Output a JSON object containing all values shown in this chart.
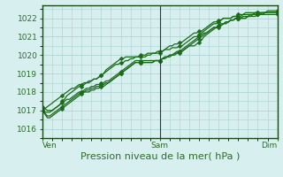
{
  "title": "",
  "xlabel": "Pression niveau de la mer( hPa )",
  "ylabel": "",
  "bg_color": "#d8eff0",
  "grid_color": "#aacfcf",
  "line_color": "#1a6b1a",
  "border_color": "#2d6b2d",
  "axis_color": "#1a4a1a",
  "ylim": [
    1015.5,
    1022.7
  ],
  "yticks": [
    1016,
    1017,
    1018,
    1019,
    1020,
    1021,
    1022
  ],
  "xtick_labels": [
    "Ven",
    "Sam",
    "Dim"
  ],
  "xtick_positions": [
    0,
    48,
    96
  ],
  "total_points": 97,
  "lines": [
    [
      1017.0,
      1017.1,
      1017.2,
      1017.3,
      1017.4,
      1017.5,
      1017.6,
      1017.7,
      1017.8,
      1017.9,
      1018.0,
      1018.1,
      1018.2,
      1018.2,
      1018.3,
      1018.4,
      1018.4,
      1018.5,
      1018.5,
      1018.6,
      1018.6,
      1018.7,
      1018.7,
      1018.8,
      1018.9,
      1019.0,
      1019.1,
      1019.2,
      1019.3,
      1019.4,
      1019.5,
      1019.5,
      1019.6,
      1019.6,
      1019.7,
      1019.7,
      1019.8,
      1019.8,
      1019.9,
      1019.9,
      1020.0,
      1020.0,
      1020.0,
      1020.1,
      1020.1,
      1020.1,
      1020.1,
      1020.1,
      1020.1,
      1020.2,
      1020.3,
      1020.4,
      1020.5,
      1020.5,
      1020.6,
      1020.6,
      1020.7,
      1020.7,
      1020.8,
      1020.9,
      1021.0,
      1021.1,
      1021.2,
      1021.2,
      1021.3,
      1021.3,
      1021.4,
      1021.5,
      1021.6,
      1021.7,
      1021.8,
      1021.8,
      1021.9,
      1021.9,
      1022.0,
      1022.0,
      1022.0,
      1022.0,
      1022.1,
      1022.1,
      1022.1,
      1022.1,
      1022.2,
      1022.2,
      1022.2,
      1022.2,
      1022.2,
      1022.3,
      1022.3,
      1022.3,
      1022.3,
      1022.3,
      1022.3,
      1022.3,
      1022.3,
      1022.3,
      1022.3
    ],
    [
      1017.0,
      1016.9,
      1016.9,
      1016.9,
      1017.0,
      1017.1,
      1017.2,
      1017.3,
      1017.4,
      1017.5,
      1017.6,
      1017.6,
      1017.7,
      1017.8,
      1017.9,
      1018.0,
      1018.0,
      1018.1,
      1018.2,
      1018.2,
      1018.3,
      1018.3,
      1018.4,
      1018.4,
      1018.5,
      1018.5,
      1018.6,
      1018.6,
      1018.7,
      1018.8,
      1018.9,
      1019.0,
      1019.1,
      1019.2,
      1019.3,
      1019.4,
      1019.5,
      1019.6,
      1019.7,
      1019.7,
      1019.7,
      1019.7,
      1019.7,
      1019.7,
      1019.7,
      1019.7,
      1019.7,
      1019.7,
      1019.7,
      1019.8,
      1019.9,
      1019.9,
      1020.0,
      1020.0,
      1020.1,
      1020.2,
      1020.2,
      1020.3,
      1020.4,
      1020.5,
      1020.6,
      1020.7,
      1020.8,
      1020.9,
      1021.0,
      1021.1,
      1021.2,
      1021.2,
      1021.3,
      1021.4,
      1021.5,
      1021.5,
      1021.6,
      1021.7,
      1021.7,
      1021.8,
      1021.8,
      1021.9,
      1021.9,
      1022.0,
      1022.0,
      1022.0,
      1022.0,
      1022.0,
      1022.1,
      1022.1,
      1022.1,
      1022.1,
      1022.2,
      1022.2,
      1022.2,
      1022.2,
      1022.2,
      1022.2,
      1022.2,
      1022.2,
      1022.2
    ],
    [
      1017.0,
      1016.85,
      1016.7,
      1016.7,
      1016.8,
      1016.9,
      1017.0,
      1017.1,
      1017.2,
      1017.3,
      1017.4,
      1017.5,
      1017.6,
      1017.7,
      1017.8,
      1017.9,
      1018.0,
      1018.0,
      1018.1,
      1018.1,
      1018.2,
      1018.2,
      1018.3,
      1018.3,
      1018.4,
      1018.4,
      1018.5,
      1018.5,
      1018.6,
      1018.7,
      1018.8,
      1018.9,
      1019.0,
      1019.1,
      1019.2,
      1019.3,
      1019.4,
      1019.5,
      1019.6,
      1019.6,
      1019.6,
      1019.6,
      1019.6,
      1019.6,
      1019.6,
      1019.6,
      1019.7,
      1019.7,
      1019.7,
      1019.8,
      1019.9,
      1019.9,
      1020.0,
      1020.0,
      1020.1,
      1020.1,
      1020.2,
      1020.2,
      1020.3,
      1020.4,
      1020.5,
      1020.6,
      1020.7,
      1020.8,
      1020.9,
      1021.0,
      1021.1,
      1021.2,
      1021.3,
      1021.4,
      1021.5,
      1021.5,
      1021.6,
      1021.6,
      1021.7,
      1021.8,
      1021.8,
      1021.9,
      1021.9,
      1022.0,
      1022.0,
      1022.0,
      1022.1,
      1022.1,
      1022.1,
      1022.2,
      1022.2,
      1022.2,
      1022.2,
      1022.2,
      1022.2,
      1022.3,
      1022.3,
      1022.3,
      1022.3,
      1022.3,
      1022.3
    ],
    [
      1017.0,
      1016.8,
      1016.6,
      1016.6,
      1016.7,
      1016.8,
      1016.9,
      1017.0,
      1017.1,
      1017.2,
      1017.3,
      1017.4,
      1017.5,
      1017.6,
      1017.7,
      1017.8,
      1017.9,
      1018.0,
      1018.0,
      1018.0,
      1018.1,
      1018.1,
      1018.2,
      1018.2,
      1018.3,
      1018.3,
      1018.4,
      1018.5,
      1018.6,
      1018.7,
      1018.8,
      1018.9,
      1019.0,
      1019.1,
      1019.2,
      1019.3,
      1019.4,
      1019.5,
      1019.6,
      1019.6,
      1019.6,
      1019.6,
      1019.6,
      1019.6,
      1019.6,
      1019.6,
      1019.7,
      1019.7,
      1019.7,
      1019.8,
      1019.8,
      1019.9,
      1019.9,
      1020.0,
      1020.0,
      1020.1,
      1020.1,
      1020.2,
      1020.3,
      1020.4,
      1020.5,
      1020.5,
      1020.5,
      1020.6,
      1020.7,
      1020.8,
      1021.0,
      1021.1,
      1021.2,
      1021.3,
      1021.4,
      1021.5,
      1021.5,
      1021.6,
      1021.7,
      1021.7,
      1021.8,
      1021.9,
      1021.9,
      1022.0,
      1022.0,
      1022.0,
      1022.0,
      1022.0,
      1022.1,
      1022.1,
      1022.2,
      1022.2,
      1022.2,
      1022.2,
      1022.3,
      1022.3,
      1022.3,
      1022.3,
      1022.3,
      1022.3,
      1022.3
    ],
    [
      1017.2,
      1017.1,
      1017.0,
      1017.0,
      1017.0,
      1017.1,
      1017.2,
      1017.3,
      1017.5,
      1017.6,
      1017.8,
      1017.9,
      1018.0,
      1018.1,
      1018.2,
      1018.3,
      1018.3,
      1018.4,
      1018.5,
      1018.5,
      1018.6,
      1018.7,
      1018.7,
      1018.8,
      1018.9,
      1019.0,
      1019.2,
      1019.3,
      1019.4,
      1019.5,
      1019.6,
      1019.7,
      1019.8,
      1019.8,
      1019.9,
      1019.9,
      1019.9,
      1019.9,
      1019.9,
      1019.9,
      1019.9,
      1019.9,
      1019.9,
      1020.0,
      1020.0,
      1020.1,
      1020.1,
      1020.2,
      1020.2,
      1020.2,
      1020.3,
      1020.3,
      1020.3,
      1020.4,
      1020.4,
      1020.4,
      1020.5,
      1020.5,
      1020.6,
      1020.7,
      1020.8,
      1020.9,
      1021.0,
      1021.0,
      1021.1,
      1021.2,
      1021.3,
      1021.4,
      1021.5,
      1021.6,
      1021.7,
      1021.7,
      1021.8,
      1021.9,
      1022.0,
      1022.0,
      1022.0,
      1022.0,
      1022.1,
      1022.1,
      1022.2,
      1022.2,
      1022.2,
      1022.3,
      1022.3,
      1022.3,
      1022.3,
      1022.3,
      1022.3,
      1022.3,
      1022.3,
      1022.3,
      1022.4,
      1022.4,
      1022.4,
      1022.4,
      1022.4
    ]
  ],
  "marker_interval": 8,
  "marker_size": 2.5,
  "linewidth": 0.9,
  "fontsize_xlabel": 8,
  "fontsize_ticks": 6.5
}
